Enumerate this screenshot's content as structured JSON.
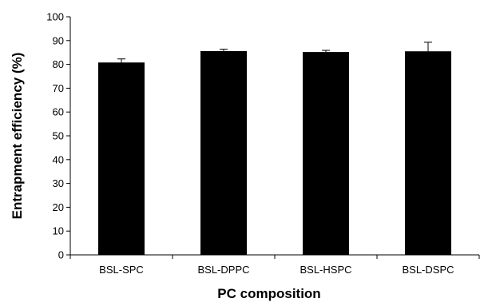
{
  "chart_data": {
    "type": "bar",
    "title": "",
    "xlabel": "PC composition",
    "ylabel": "Entrapment efficiency (%)",
    "categories": [
      "BSL-SPC",
      "BSL-DPPC",
      "BSL-HSPC",
      "BSL-DSPC"
    ],
    "values": [
      80.8,
      85.6,
      85.2,
      85.5
    ],
    "errors": [
      1.5,
      0.8,
      0.7,
      3.8
    ],
    "ylim": [
      0,
      100
    ],
    "yticks": [
      "0",
      "10",
      "20",
      "30",
      "40",
      "50",
      "60",
      "70",
      "80",
      "90",
      "100"
    ],
    "grid": false,
    "legend": "none",
    "bar_color": "#000000"
  }
}
